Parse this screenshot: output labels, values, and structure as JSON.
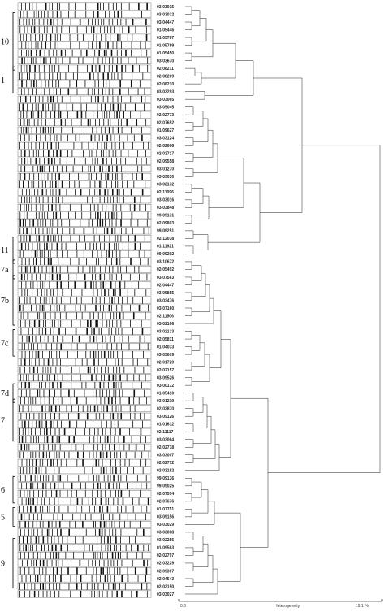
{
  "labels": [
    "03-03015",
    "03-03032",
    "03-04447",
    "01-05446",
    "01-05787",
    "01-05789",
    "01-05450",
    "03-03670",
    "02-08211",
    "02-08209",
    "02-08210",
    "03-03293",
    "03-03065",
    "03-05045",
    "02-02773",
    "02-07652",
    "01-09627",
    "03-03124",
    "02-02606",
    "02-02717",
    "02-09558",
    "03-01270",
    "03-03030",
    "03-02132",
    "02-11096",
    "03-03016",
    "03-03848",
    "99-09131",
    "02-09803",
    "99-09251",
    "02-12038",
    "01-11921",
    "99-09292",
    "03-10672",
    "02-05492",
    "03-07563",
    "02-04447",
    "03-05855",
    "03-02476",
    "03-07160",
    "02-11506",
    "03-02166",
    "03-02133",
    "02-05811",
    "01-04033",
    "03-03609",
    "02-01729",
    "02-02157",
    "03-09526",
    "03-00172",
    "01-05410",
    "03-01219",
    "02-02870",
    "03-09126",
    "01-01612",
    "02-11117",
    "03-03064",
    "02-02718",
    "03-03007",
    "02-02772",
    "02-02182",
    "99-09136",
    "99-09025",
    "02-07574",
    "02-07676",
    "01-07751",
    "03-09156",
    "03-03029",
    "03-03088",
    "03-02256",
    "01-09563",
    "02-02797",
    "02-03229",
    "02-09307",
    "02-04543",
    "02-02150",
    "03-03027"
  ],
  "groups": [
    {
      "label": "10",
      "start": 1,
      "end": 8
    },
    {
      "label": "1",
      "start": 8,
      "end": 11
    },
    {
      "label": "11",
      "start": 30,
      "end": 33
    },
    {
      "label": "7a",
      "start": 33,
      "end": 35
    },
    {
      "label": "7b",
      "start": 35,
      "end": 41
    },
    {
      "label": "7c",
      "start": 42,
      "end": 45
    },
    {
      "label": "7d",
      "start": 49,
      "end": 51
    },
    {
      "label": "7",
      "start": 51,
      "end": 56
    },
    {
      "label": "6",
      "start": 61,
      "end": 64
    },
    {
      "label": "5",
      "start": 65,
      "end": 67
    },
    {
      "label": "9",
      "start": 69,
      "end": 75
    }
  ],
  "axis": {
    "min_label": "0.0",
    "title": "Heterogeneity",
    "max_label": "19.1 %"
  }
}
